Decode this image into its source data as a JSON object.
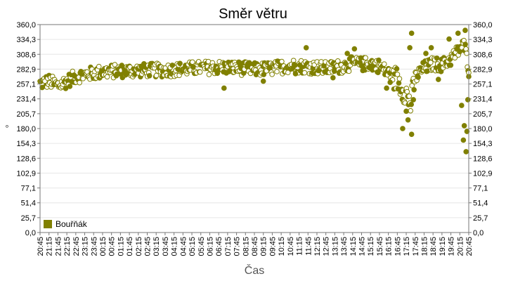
{
  "chart_data": {
    "type": "scatter",
    "title": "Směr větru",
    "xlabel": "Čas",
    "ylabel": "°",
    "ylim": [
      0,
      360
    ],
    "y_ticks": [
      "0,0",
      "25,7",
      "51,4",
      "77,1",
      "102,9",
      "128,6",
      "154,3",
      "180,0",
      "205,7",
      "231,4",
      "257,1",
      "282,9",
      "308,6",
      "334,3",
      "360,0"
    ],
    "x_ticks": [
      "20:45",
      "21:15",
      "21:45",
      "22:15",
      "22:45",
      "23:15",
      "23:45",
      "00:15",
      "00:45",
      "01:15",
      "01:45",
      "02:15",
      "02:45",
      "03:15",
      "03:45",
      "04:15",
      "04:45",
      "05:15",
      "05:45",
      "06:15",
      "06:45",
      "07:15",
      "07:45",
      "08:15",
      "08:45",
      "09:15",
      "09:45",
      "10:15",
      "10:45",
      "11:15",
      "11:45",
      "12:15",
      "12:45",
      "13:15",
      "13:45",
      "14:15",
      "14:45",
      "15:15",
      "15:45",
      "16:15",
      "16:45",
      "17:15",
      "17:45",
      "18:15",
      "18:45",
      "19:15",
      "19:45",
      "20:15",
      "20:45"
    ],
    "grid": true,
    "legend_position": "bottom-left",
    "series": [
      {
        "name": "Bouřňák",
        "color": "#808000",
        "hours_start": "20:45",
        "trend": [
          [
            0.0,
            258
          ],
          [
            0.5,
            262
          ],
          [
            1.0,
            254
          ],
          [
            1.5,
            262
          ],
          [
            2.0,
            270
          ],
          [
            2.5,
            273
          ],
          [
            3.0,
            276
          ],
          [
            3.5,
            278
          ],
          [
            4.0,
            279
          ],
          [
            5.0,
            280
          ],
          [
            6.0,
            281
          ],
          [
            7.0,
            281
          ],
          [
            8.0,
            283
          ],
          [
            9.0,
            285
          ],
          [
            10.0,
            286
          ],
          [
            11.0,
            285
          ],
          [
            12.0,
            282
          ],
          [
            13.0,
            284
          ],
          [
            14.0,
            289
          ],
          [
            15.0,
            287
          ],
          [
            16.0,
            284
          ],
          [
            17.0,
            288
          ],
          [
            17.5,
            293
          ],
          [
            18.0,
            291
          ],
          [
            18.5,
            293
          ],
          [
            19.0,
            288
          ],
          [
            19.5,
            276
          ],
          [
            20.0,
            265
          ],
          [
            20.5,
            240
          ],
          [
            20.75,
            222
          ],
          [
            21.0,
            268
          ],
          [
            21.5,
            285
          ],
          [
            22.0,
            292
          ],
          [
            22.5,
            290
          ],
          [
            23.0,
            300
          ],
          [
            23.5,
            318
          ],
          [
            23.75,
            325
          ],
          [
            24.0,
            285
          ]
        ],
        "outliers": [
          [
            10.3,
            250
          ],
          [
            12.5,
            262
          ],
          [
            14.3,
            275
          ],
          [
            14.9,
            320
          ],
          [
            16.4,
            268
          ],
          [
            17.2,
            310
          ],
          [
            17.6,
            318
          ],
          [
            19.4,
            250
          ],
          [
            19.6,
            260
          ],
          [
            20.3,
            180
          ],
          [
            20.5,
            210
          ],
          [
            20.6,
            195
          ],
          [
            20.8,
            170
          ],
          [
            20.9,
            230
          ],
          [
            20.8,
            345
          ],
          [
            20.7,
            320
          ],
          [
            21.6,
            310
          ],
          [
            21.9,
            320
          ],
          [
            22.3,
            265
          ],
          [
            22.9,
            335
          ],
          [
            23.4,
            345
          ],
          [
            23.6,
            220
          ],
          [
            23.7,
            160
          ],
          [
            23.75,
            185
          ],
          [
            23.85,
            140
          ],
          [
            23.9,
            175
          ],
          [
            23.95,
            230
          ],
          [
            23.8,
            350
          ],
          [
            24.0,
            270
          ]
        ]
      }
    ]
  }
}
